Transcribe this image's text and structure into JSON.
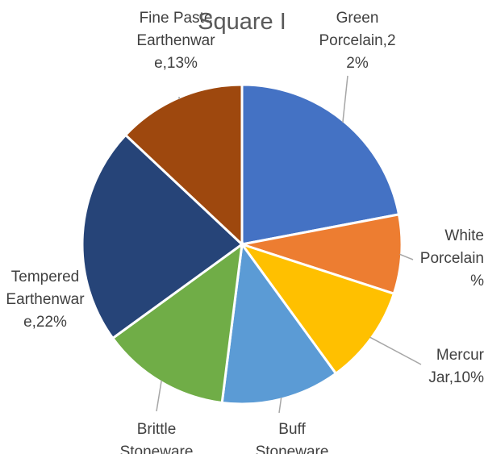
{
  "chart_data": {
    "type": "pie",
    "title": "Square I",
    "slices": [
      {
        "name": "Green Porcelain",
        "value": 22,
        "label_lines": [
          "Green",
          "Porcelain,2",
          "2%"
        ],
        "color": "#4472c4"
      },
      {
        "name": "White Porcelain",
        "value": 8,
        "label_lines": [
          "White",
          "Porcelain",
          "%"
        ],
        "color": "#ed7d31"
      },
      {
        "name": "Mercury Jar",
        "value": 10,
        "label_lines": [
          "Mercur",
          "Jar,10%"
        ],
        "color": "#ffc000"
      },
      {
        "name": "Buff Stoneware",
        "value": 12,
        "label_lines": [
          "Buff",
          "Stoneware"
        ],
        "color": "#5b9bd5"
      },
      {
        "name": "Brittle Stoneware",
        "value": 13,
        "label_lines": [
          "Brittle",
          "Stoneware"
        ],
        "color": "#70ad47"
      },
      {
        "name": "Tempered Earthenware",
        "value": 22,
        "label_lines": [
          "Tempered",
          "Earthenwar",
          "e,22%"
        ],
        "color": "#264478"
      },
      {
        "name": "Fine Paste Earthenware",
        "value": 13,
        "label_lines": [
          "Fine Paste",
          "Earthenwar",
          "e,13%"
        ],
        "color": "#9e480e"
      }
    ]
  }
}
